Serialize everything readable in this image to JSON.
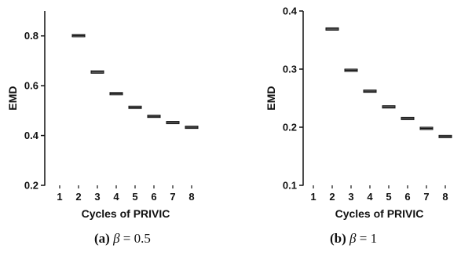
{
  "chart_data": [
    {
      "type": "box",
      "xlabel": "Cycles of PRIVIC",
      "ylabel": "EMD",
      "categories": [
        "1",
        "2",
        "3",
        "4",
        "5",
        "6",
        "7",
        "8"
      ],
      "values": [
        null,
        0.801,
        0.655,
        0.568,
        0.513,
        0.477,
        0.452,
        0.433
      ],
      "box_half_height": [
        null,
        0.003,
        0.005,
        0.002,
        0.002,
        0.002,
        0.002,
        0.001
      ],
      "ylim": [
        0.2,
        0.9
      ],
      "yticks": [
        0.2,
        0.4,
        0.6,
        0.8
      ],
      "ytick_labels": [
        "0.2",
        "0.4",
        "0.6",
        "0.8"
      ],
      "caption_sub": "(a)",
      "caption_beta": "β",
      "caption_rest": " = 0.5",
      "colors": {
        "axis": "#111111",
        "box": "#111111",
        "box_fill": "#d8d8d8"
      }
    },
    {
      "type": "box",
      "xlabel": "Cycles of PRIVIC",
      "ylabel": "EMD",
      "categories": [
        "1",
        "2",
        "3",
        "4",
        "5",
        "6",
        "7",
        "8"
      ],
      "values": [
        null,
        0.369,
        0.298,
        0.262,
        0.235,
        0.215,
        0.198,
        0.184
      ],
      "box_half_height": [
        null,
        0.002,
        0.001,
        0.002,
        0.002,
        0.002,
        0.002,
        0.002
      ],
      "ylim": [
        0.1,
        0.4
      ],
      "yticks": [
        0.1,
        0.2,
        0.3,
        0.4
      ],
      "ytick_labels": [
        "0.1",
        "0.2",
        "0.3",
        "0.4"
      ],
      "caption_sub": "(b)",
      "caption_beta": "β",
      "caption_rest": " = 1",
      "colors": {
        "axis": "#111111",
        "box": "#111111",
        "box_fill": "#d8d8d8"
      }
    }
  ]
}
